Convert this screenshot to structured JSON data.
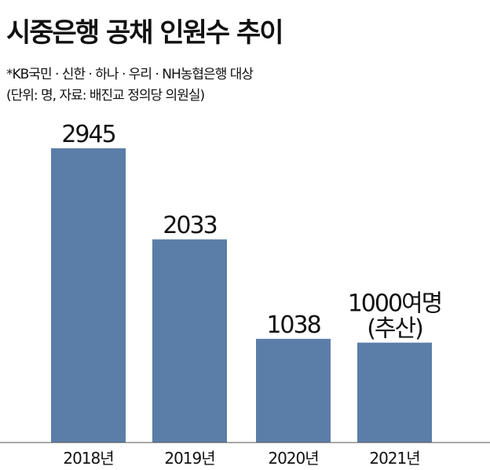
{
  "header": {
    "title": "시중은행 공채 인원수 추이",
    "note": "*KB국민 · 신한 · 하나 · 우리 · NH농협은행 대상",
    "unit_source": "(단위: 명, 자료: 배진교 정의당 의원실)"
  },
  "chart_data": {
    "type": "bar",
    "categories": [
      "2018년",
      "2019년",
      "2020년",
      "2021년"
    ],
    "values": [
      2945,
      2033,
      1038,
      1000
    ],
    "value_labels": [
      [
        "2945"
      ],
      [
        "2033"
      ],
      [
        "1038"
      ],
      [
        "1000여명",
        "(추산)"
      ]
    ],
    "title": "시중은행 공채 인원수 추이",
    "xlabel": "",
    "ylabel": "",
    "ylim": [
      0,
      2945
    ],
    "grid": false,
    "bar_color": "#5a7ea8"
  }
}
